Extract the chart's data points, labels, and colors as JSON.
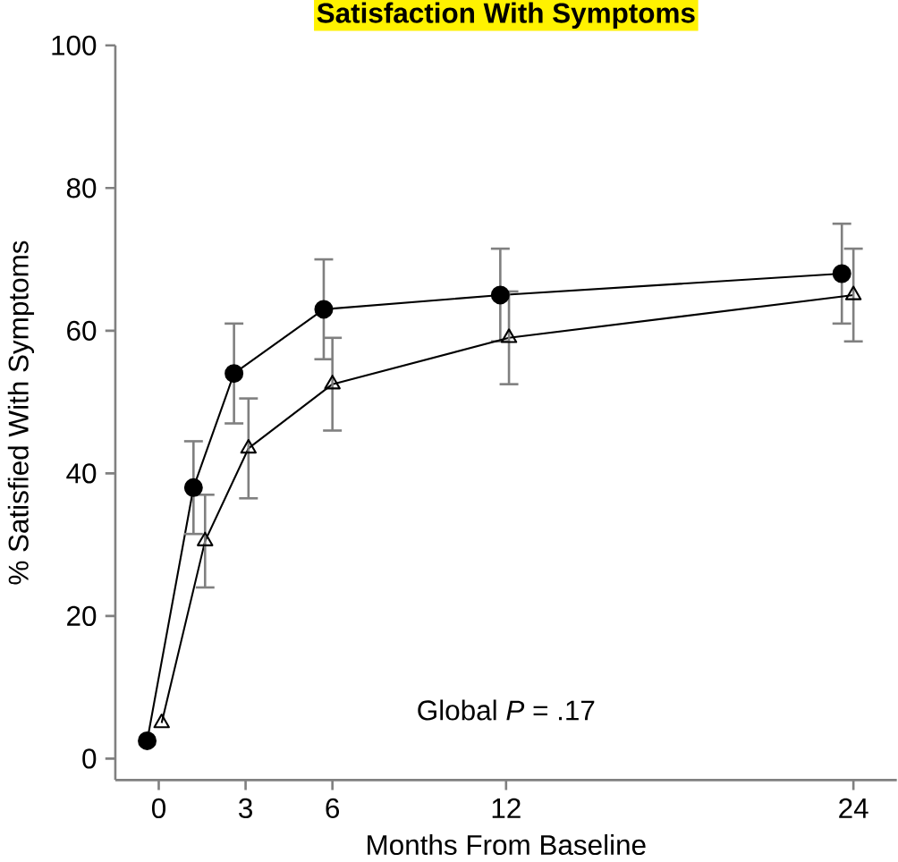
{
  "chart_data": {
    "type": "line",
    "title": "Satisfaction With Symptoms",
    "xlabel": "Months From Baseline",
    "ylabel": "% Satisfied With Symptoms",
    "xlim": [
      -1.5,
      25.5
    ],
    "xticks": [
      0,
      3,
      6,
      12,
      24
    ],
    "ylim": [
      -3,
      100
    ],
    "yticks": [
      0,
      20,
      40,
      60,
      80,
      100
    ],
    "series": [
      {
        "color": "#000000",
        "marker": "circle",
        "x": [
          -0.4,
          1.2,
          2.6,
          5.7,
          11.8,
          23.6
        ],
        "values": [
          2.5,
          38,
          54,
          63,
          65,
          68
        ],
        "errors": [
          null,
          6.5,
          7,
          7,
          6.5,
          7
        ]
      },
      {
        "color": "#000000",
        "marker": "triangle",
        "x": [
          0.1,
          1.6,
          3.1,
          6.0,
          12.1,
          24.0
        ],
        "values": [
          5,
          30.5,
          43.5,
          52.5,
          59,
          65
        ],
        "errors": [
          null,
          6.5,
          7,
          6.5,
          6.5,
          6.5
        ]
      }
    ],
    "annotations": [
      "Global *P* = .17"
    ]
  }
}
